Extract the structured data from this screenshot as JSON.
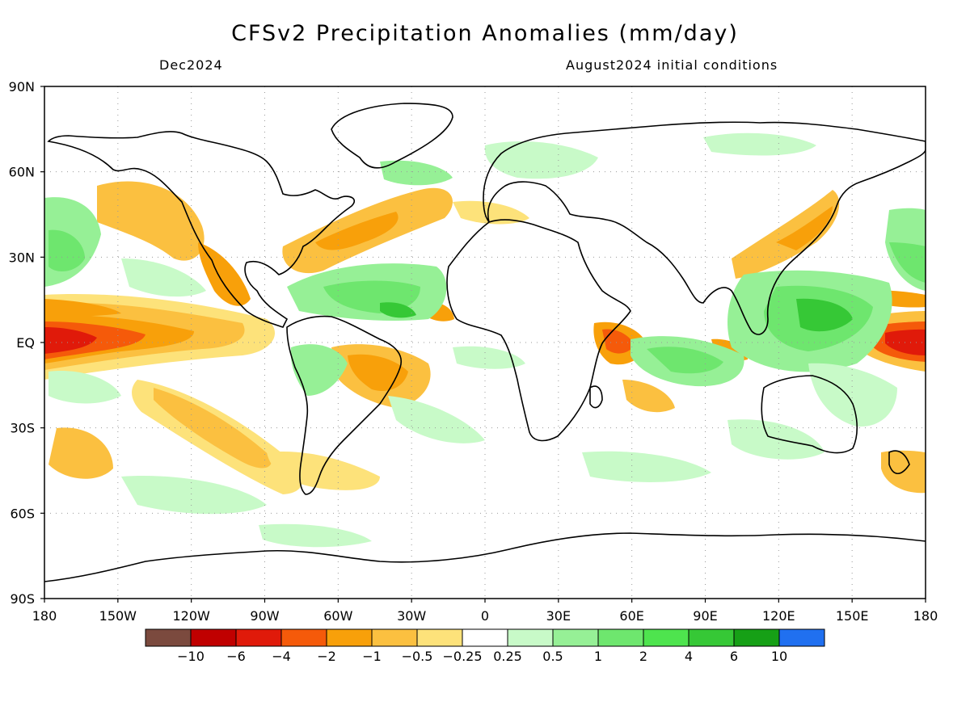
{
  "header": {
    "title": "CFSv2 Precipitation Anomalies (mm/day)",
    "valid_month": "Dec2024",
    "initial_conditions": "August2024 initial conditions"
  },
  "map": {
    "lat_range": [
      -90,
      90
    ],
    "lon_range": [
      -180,
      180
    ],
    "lat_labels": [
      "90N",
      "60N",
      "30N",
      "EQ",
      "30S",
      "60S",
      "90S"
    ],
    "lon_labels": [
      "180",
      "150W",
      "120W",
      "90W",
      "60W",
      "30W",
      "0",
      "30E",
      "60E",
      "90E",
      "120E",
      "150E",
      "180"
    ],
    "gridlines": "dotted"
  },
  "colorbar": {
    "colors": [
      "#7b4a3e",
      "#c00000",
      "#e01a0a",
      "#f55a0a",
      "#f8a00a",
      "#fbc040",
      "#fde27a",
      "#ffffff",
      "#c8fac8",
      "#96f096",
      "#6ee66e",
      "#4ee44e",
      "#36c836",
      "#16a016",
      "#2070f0"
    ],
    "tick_labels": [
      "-10",
      "-6",
      "-4",
      "-2",
      "-1",
      "-0.5",
      "-0.25",
      "0.25",
      "0.5",
      "1",
      "2",
      "4",
      "6",
      "10"
    ]
  }
}
